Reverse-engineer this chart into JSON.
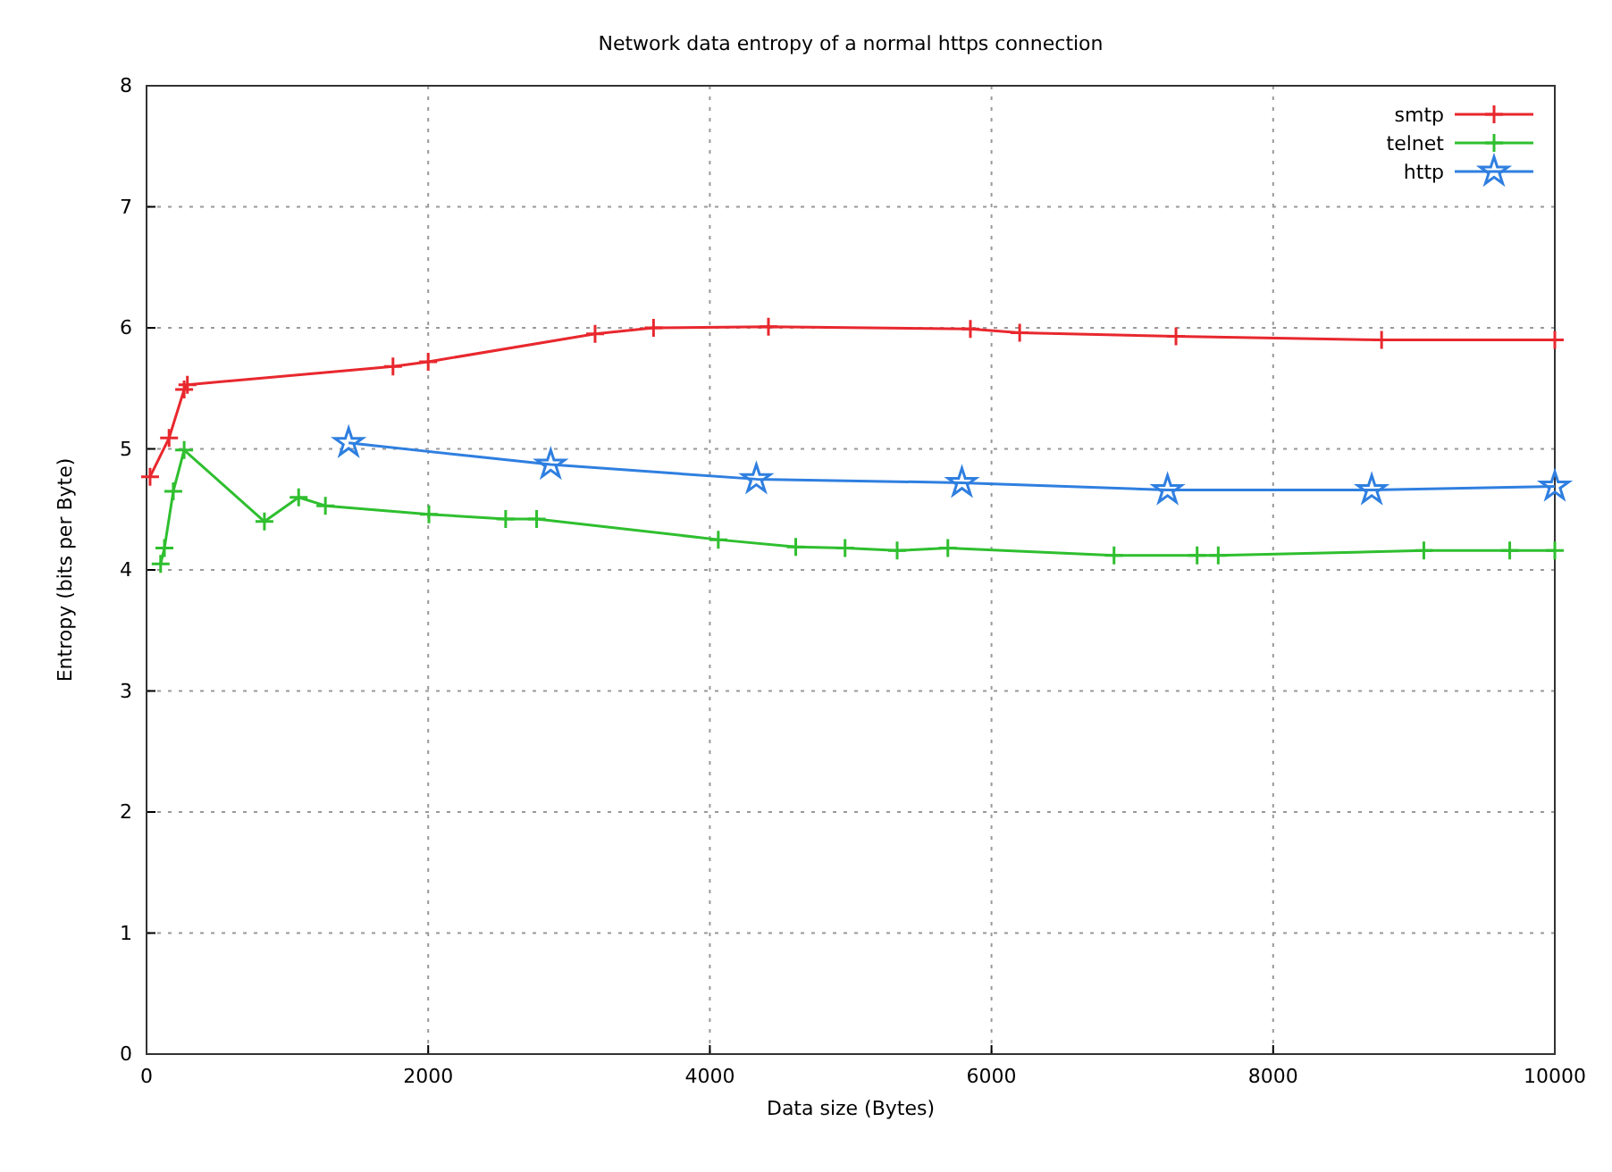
{
  "chart_data": {
    "type": "line",
    "title": "Network data entropy of a normal https connection",
    "xlabel": "Data size (Bytes)",
    "ylabel": "Entropy (bits per Byte)",
    "xlim": [
      0,
      10000
    ],
    "xticks": [
      0,
      2000,
      4000,
      6000,
      8000,
      10000
    ],
    "ylim": [
      0,
      8
    ],
    "yticks": [
      0,
      1,
      2,
      3,
      4,
      5,
      6,
      7,
      8
    ],
    "grid": true,
    "legend": "top right",
    "series": [
      {
        "name": "smtp",
        "color": "#e8282e",
        "marker": "cross",
        "x": [
          25,
          160,
          267,
          290,
          1750,
          2000,
          3185,
          3600,
          4416,
          5850,
          6200,
          7310,
          8770,
          10000
        ],
        "values": [
          4.77,
          5.09,
          5.49,
          5.53,
          5.68,
          5.72,
          5.95,
          6.0,
          6.01,
          5.99,
          5.96,
          5.93,
          5.9,
          5.9
        ]
      },
      {
        "name": "telnet",
        "color": "#2fbf2f",
        "marker": "cross",
        "x": [
          100,
          127,
          190,
          267,
          837,
          1080,
          1270,
          2005,
          2550,
          2770,
          4060,
          4610,
          4960,
          5330,
          5690,
          6870,
          7460,
          7610,
          9070,
          9680,
          10000
        ],
        "values": [
          4.05,
          4.18,
          4.65,
          4.99,
          4.4,
          4.6,
          4.53,
          4.46,
          4.42,
          4.42,
          4.25,
          4.19,
          4.18,
          4.16,
          4.18,
          4.12,
          4.12,
          4.12,
          4.16,
          4.16,
          4.16
        ]
      },
      {
        "name": "http",
        "color": "#2f7fe0",
        "marker": "star",
        "x": [
          1435,
          2870,
          4330,
          5790,
          7250,
          8700,
          10000
        ],
        "values": [
          5.05,
          4.87,
          4.75,
          4.72,
          4.66,
          4.66,
          4.69
        ]
      }
    ]
  }
}
